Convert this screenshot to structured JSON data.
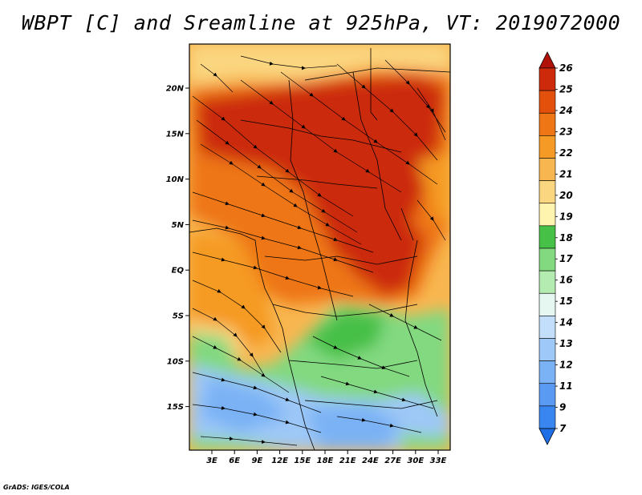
{
  "title": "WBPT [C] and Sreamline at 925hPa, VT: 2019072000",
  "credit": "GrADS: IGES/COLA",
  "map": {
    "lat_labels": [
      "20N",
      "15N",
      "10N",
      "5N",
      "EQ",
      "5S",
      "10S",
      "15S"
    ],
    "lon_labels": [
      "3E",
      "6E",
      "9E",
      "12E",
      "15E",
      "18E",
      "21E",
      "24E",
      "27E",
      "30E",
      "33E"
    ]
  },
  "colorbar": {
    "labels": [
      "7",
      "9",
      "11",
      "12",
      "13",
      "14",
      "15",
      "16",
      "17",
      "18",
      "19",
      "20",
      "21",
      "22",
      "23",
      "24",
      "25",
      "26"
    ],
    "colors": [
      "#1e6ee6",
      "#3a86f0",
      "#5a9af2",
      "#7ab2f5",
      "#9ec8f7",
      "#c2defa",
      "#e6f6f0",
      "#b4ebb0",
      "#82d980",
      "#46c046",
      "#fff3b0",
      "#fbd680",
      "#f8b650",
      "#f59a24",
      "#ee7614",
      "#e2500c",
      "#cc2a0a",
      "#b0120a"
    ]
  }
}
